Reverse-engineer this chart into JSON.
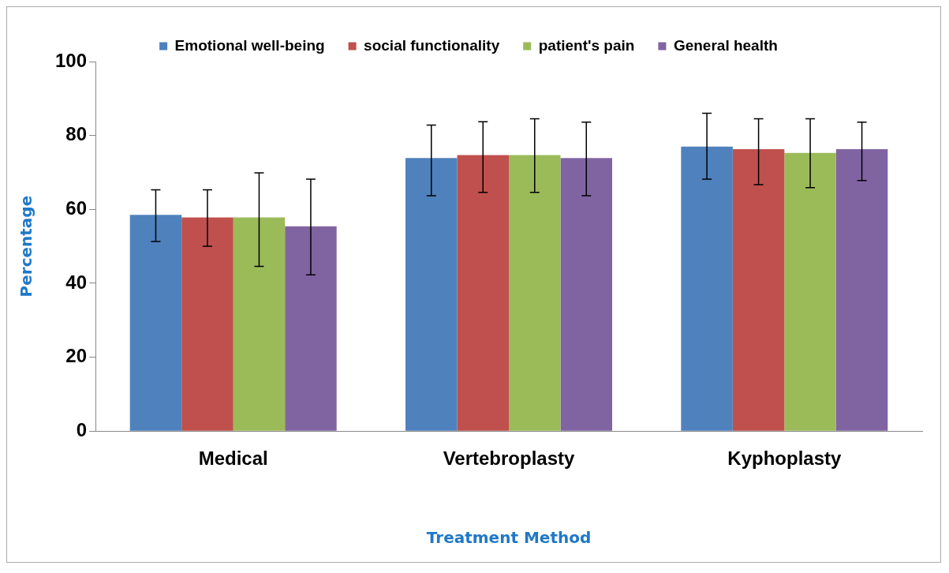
{
  "chart_data": {
    "type": "bar",
    "xlabel": "Treatment Method",
    "ylabel": "Percentage",
    "categories": [
      "Medical",
      "Vertebroplasty",
      "Kyphoplasty"
    ],
    "series": [
      {
        "name": "Emotional well-being",
        "color": "#4f81bd",
        "values": [
          58.5,
          73.9,
          77
        ],
        "errors": [
          [
            51.3,
            65.3
          ],
          [
            63.7,
            82.8
          ],
          [
            68.2,
            86
          ]
        ]
      },
      {
        "name": "social functionality",
        "color": "#c0504d",
        "values": [
          57.8,
          74.7,
          76.3
        ],
        "errors": [
          [
            50,
            65.3
          ],
          [
            64.6,
            83.7
          ],
          [
            66.7,
            84.5
          ]
        ]
      },
      {
        "name": "patient's pain",
        "color": "#9bbb59",
        "values": [
          57.8,
          74.7,
          75.3
        ],
        "errors": [
          [
            44.6,
            69.9
          ],
          [
            64.6,
            84.5
          ],
          [
            65.9,
            84.5
          ]
        ]
      },
      {
        "name": "General health",
        "color": "#8064a2",
        "values": [
          55.4,
          73.9,
          76.3
        ],
        "errors": [
          [
            42.3,
            68.2
          ],
          [
            63.7,
            83.6
          ],
          [
            67.8,
            83.6
          ]
        ]
      }
    ],
    "ylim": [
      0,
      100
    ],
    "yticks": [
      0,
      20,
      40,
      60,
      80,
      100
    ],
    "grid": false,
    "legend": "top"
  }
}
